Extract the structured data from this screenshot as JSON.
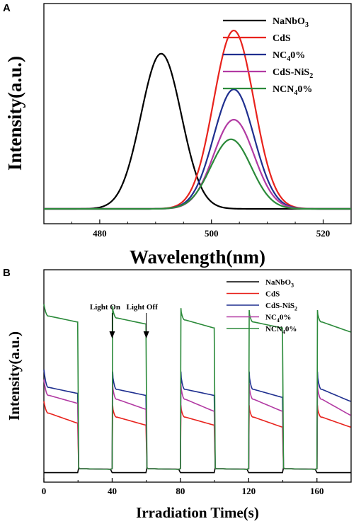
{
  "panels": {
    "a": {
      "letter": "A"
    },
    "b": {
      "letter": "B"
    }
  },
  "chart_data": [
    {
      "type": "line",
      "panel": "A",
      "xlabel": "Wavelength(nm)",
      "ylabel": "Intensity(a.u.)",
      "xlim": [
        470,
        525
      ],
      "ylim": [
        0,
        1.0
      ],
      "xticks": [
        480,
        500,
        520
      ],
      "y_tick_labels": "none",
      "legend_position": "top-right",
      "series": [
        {
          "name": "NaNbO3",
          "color": "#000000",
          "peak_x": 491,
          "peak_y": 0.87,
          "fwhm": 8.5
        },
        {
          "name": "CdS",
          "color": "#e8231d",
          "peak_x": 504,
          "peak_y": 1.0,
          "fwhm": 8.5
        },
        {
          "name": "NC40%",
          "color": "#1f2f8f",
          "peak_x": 504,
          "peak_y": 0.67,
          "fwhm": 8.5
        },
        {
          "name": "CdS-NiS2",
          "color": "#b23aa3",
          "peak_x": 504,
          "peak_y": 0.5,
          "fwhm": 8.5
        },
        {
          "name": "NCN40%",
          "color": "#2b8a3a",
          "peak_x": 503.5,
          "peak_y": 0.39,
          "fwhm": 8.5
        }
      ]
    },
    {
      "type": "line",
      "panel": "B",
      "xlabel": "Irradiation Time(s)",
      "ylabel": "Intensity(a.u.)",
      "xlim": [
        0,
        180
      ],
      "ylim": [
        0,
        1.0
      ],
      "xticks": [
        0,
        40,
        80,
        120,
        160
      ],
      "y_tick_labels": "none",
      "legend_position": "top-right",
      "on_intervals": [
        [
          0,
          20
        ],
        [
          40,
          60
        ],
        [
          80,
          100
        ],
        [
          120,
          140
        ],
        [
          160,
          180
        ]
      ],
      "dark_level": 0.05,
      "annotations": [
        {
          "text": "Light On",
          "x": 40
        },
        {
          "text": "Light Off",
          "x": 60
        }
      ],
      "series": [
        {
          "name": "NaNbO3",
          "color": "#000000",
          "on_start": [
            0.03,
            0.03,
            0.03,
            0.03,
            0.03
          ],
          "on_end": [
            0.03,
            0.03,
            0.03,
            0.03,
            0.03
          ],
          "spike": 0.0
        },
        {
          "name": "CdS",
          "color": "#e8231d",
          "on_start": [
            0.33,
            0.31,
            0.31,
            0.31,
            0.31
          ],
          "on_end": [
            0.28,
            0.27,
            0.27,
            0.26,
            0.26
          ],
          "spike": 0.06
        },
        {
          "name": "CdS-NiS2",
          "color": "#1f2f8f",
          "on_start": [
            0.46,
            0.45,
            0.45,
            0.45,
            0.45
          ],
          "on_end": [
            0.43,
            0.42,
            0.42,
            0.41,
            0.39
          ],
          "spike": 0.09
        },
        {
          "name": "NC40%",
          "color": "#b23aa3",
          "on_start": [
            0.42,
            0.4,
            0.4,
            0.4,
            0.4
          ],
          "on_end": [
            0.38,
            0.35,
            0.34,
            0.34,
            0.32
          ],
          "spike": 0.08
        },
        {
          "name": "NCN40%",
          "color": "#2b8a3a",
          "on_start": [
            0.82,
            0.81,
            0.8,
            0.79,
            0.79
          ],
          "on_end": [
            0.79,
            0.78,
            0.76,
            0.76,
            0.74
          ],
          "spike": 0.06
        }
      ]
    }
  ]
}
